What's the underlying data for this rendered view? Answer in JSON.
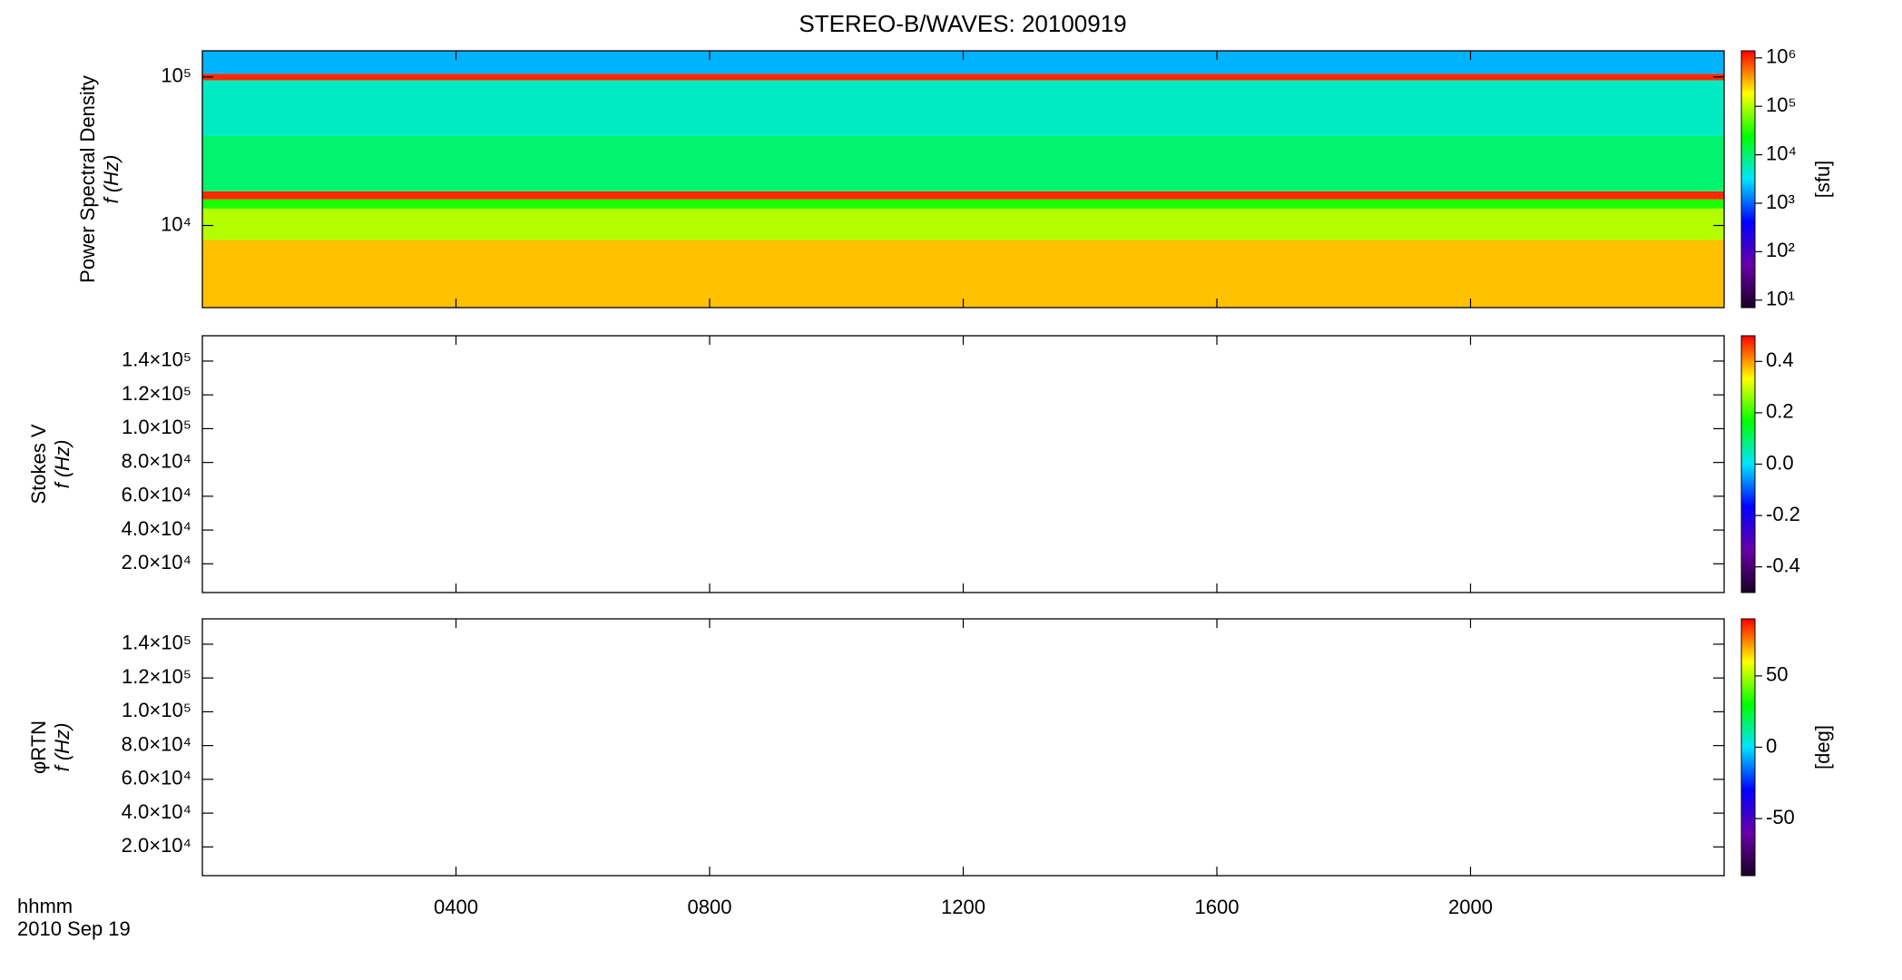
{
  "chart_data": {
    "type": "spectrogram",
    "title": "STEREO-B/WAVES: 20100919",
    "xlim": [
      0,
      24
    ],
    "xticks": [
      {
        "value": 4,
        "label": "0400"
      },
      {
        "value": 8,
        "label": "0800"
      },
      {
        "value": 12,
        "label": "1200"
      },
      {
        "value": 16,
        "label": "1600"
      },
      {
        "value": 20,
        "label": "2000"
      }
    ],
    "x_label": "hhmm",
    "date_label": "2010 Sep 19",
    "colormap": [
      "#1a0026",
      "#6a00a8",
      "#0000ff",
      "#00e5ff",
      "#00ff00",
      "#ffff00",
      "#ff0000"
    ],
    "panels": [
      {
        "ylabel": "Power Spectral Density",
        "ylabel2": "f (Hz)",
        "ylog": true,
        "ylim": [
          2800,
          150000
        ],
        "yticks": [
          {
            "value": 10000,
            "label": "10⁴"
          },
          {
            "value": 100000,
            "label": "10⁵"
          }
        ],
        "clog": true,
        "clim": [
          7,
          1400000
        ],
        "clabel": "[sfu]",
        "cticks": [
          {
            "value": 10,
            "label": "10¹"
          },
          {
            "value": 100,
            "label": "10²"
          },
          {
            "value": 1000,
            "label": "10³"
          },
          {
            "value": 10000,
            "label": "10⁴"
          },
          {
            "value": 100000,
            "label": "10⁵"
          },
          {
            "value": 1000000,
            "label": "10⁶"
          }
        ],
        "rows": [
          {
            "f": [
              2800,
              8000
            ],
            "level": 300000
          },
          {
            "f": [
              8000,
              13000
            ],
            "level": 100000
          },
          {
            "f": [
              13000,
              15000
            ],
            "level": 30000
          },
          {
            "f": [
              15000,
              17000
            ],
            "level": 1000000
          },
          {
            "f": [
              17000,
              40000
            ],
            "level": 10000
          },
          {
            "f": [
              40000,
              95000
            ],
            "level": 5000
          },
          {
            "f": [
              95000,
              105000
            ],
            "level": 1000000
          },
          {
            "f": [
              105000,
              150000
            ],
            "level": 2000
          }
        ]
      },
      {
        "ylabel": "Stokes V",
        "ylabel2": "f (Hz)",
        "ylog": false,
        "ylim": [
          3000,
          155000
        ],
        "yticks": [
          {
            "value": 20000,
            "label": "2.0×10⁴"
          },
          {
            "value": 40000,
            "label": "4.0×10⁴"
          },
          {
            "value": 60000,
            "label": "6.0×10⁴"
          },
          {
            "value": 80000,
            "label": "8.0×10⁴"
          },
          {
            "value": 100000,
            "label": "1.0×10⁵"
          },
          {
            "value": 120000,
            "label": "1.2×10⁵"
          },
          {
            "value": 140000,
            "label": "1.4×10⁵"
          }
        ],
        "clog": false,
        "clim": [
          -0.5,
          0.5
        ],
        "cticks": [
          -0.4,
          -0.2,
          {
            "value": 0,
            "label": "0.0"
          },
          0.2,
          0.4
        ],
        "rows": []
      },
      {
        "ylabel": "φRTN",
        "ylabel2": "f (Hz)",
        "ylog": false,
        "ylim": [
          3000,
          155000
        ],
        "yticks": [
          {
            "value": 20000,
            "label": "2.0×10⁴"
          },
          {
            "value": 40000,
            "label": "4.0×10⁴"
          },
          {
            "value": 60000,
            "label": "6.0×10⁴"
          },
          {
            "value": 80000,
            "label": "8.0×10⁴"
          },
          {
            "value": 100000,
            "label": "1.0×10⁵"
          },
          {
            "value": 120000,
            "label": "1.2×10⁵"
          },
          {
            "value": 140000,
            "label": "1.4×10⁵"
          }
        ],
        "clog": false,
        "clim": [
          -90,
          90
        ],
        "clabel": "[deg]",
        "cticks": [
          -50,
          0,
          50
        ],
        "rows": []
      }
    ]
  }
}
